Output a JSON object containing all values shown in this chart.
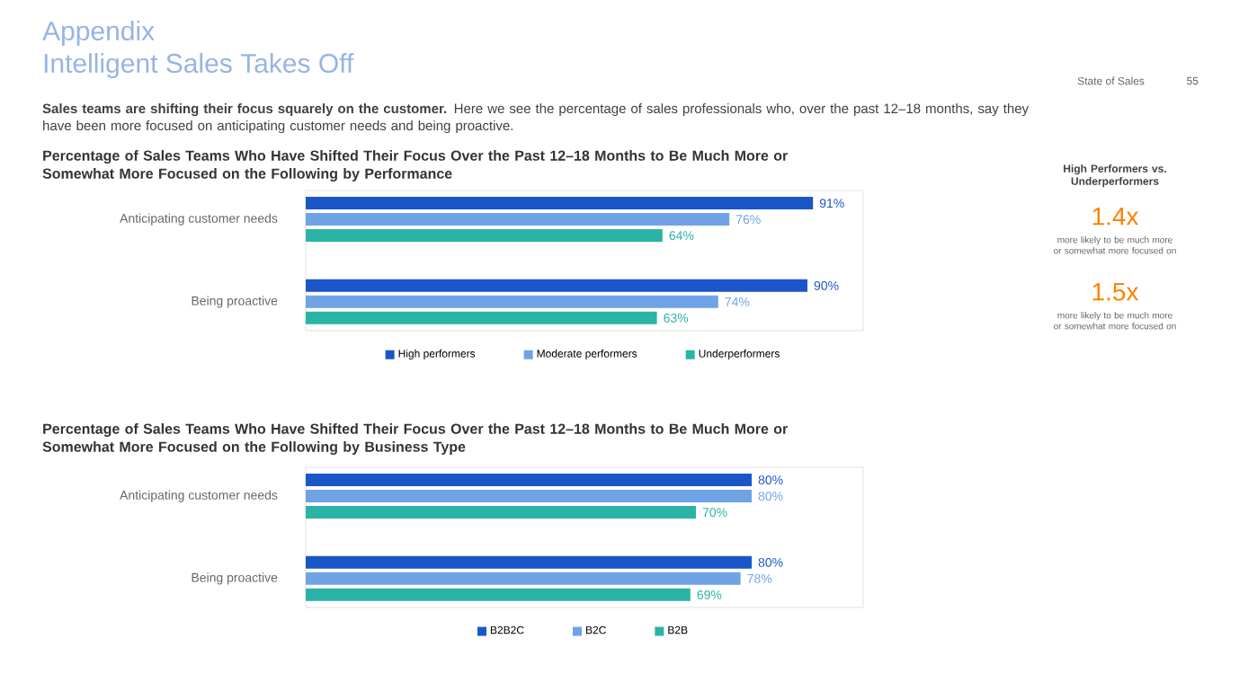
{
  "chart_data": [
    {
      "type": "bar",
      "orientation": "horizontal",
      "title": "Percentage of Sales Teams Who Have Shifted Their Focus Over the Past 12–18 Months to Be Much More or Somewhat More Focused on the Following by Performance",
      "categories": [
        "Anticipating customer needs",
        "Being proactive"
      ],
      "series": [
        {
          "name": "High performers",
          "color": "#1a56c8",
          "values": [
            91,
            90
          ],
          "value_labels": [
            "91%",
            "90%"
          ]
        },
        {
          "name": "Moderate performers",
          "color": "#6fa3e6",
          "values": [
            76,
            74
          ],
          "value_labels": [
            "76%",
            "74%"
          ]
        },
        {
          "name": "Underperformers",
          "color": "#2ab3a6",
          "values": [
            64,
            63
          ],
          "value_labels": [
            "64%",
            "63%"
          ]
        }
      ],
      "xlim": [
        0,
        100
      ],
      "tick_labels": "y",
      "legend": "bottom",
      "annotations": [
        "Appendix",
        "Intelligent Sales Takes Off",
        "State of Sales",
        "55",
        "**Sales teams are shifting their focus squarely on the customer.** Here we see the percentage of sales professionals who, over the past 12–18 months, say they have been more focused on anticipating customer needs and being proactive.",
        "High Performers vs. Underperformers",
        "1.4x",
        "more likely to be much more or somewhat more focused on",
        "1.5x",
        "more likely to be much more or somewhat more focused on"
      ]
    },
    {
      "type": "bar",
      "orientation": "horizontal",
      "title": "Percentage of Sales Teams Who Have Shifted Their Focus Over the Past 12–18 Months to Be Much More or Somewhat More Focused on the Following by Business Type",
      "categories": [
        "Anticipating customer needs",
        "Being proactive"
      ],
      "series": [
        {
          "name": "B2B2C",
          "color": "#1a56c8",
          "values": [
            80,
            80
          ],
          "value_labels": [
            "80%",
            "80%"
          ]
        },
        {
          "name": "B2C",
          "color": "#6fa3e6",
          "values": [
            80,
            78
          ],
          "value_labels": [
            "80%",
            "78%"
          ]
        },
        {
          "name": "B2B",
          "color": "#2ab3a6",
          "values": [
            70,
            69
          ],
          "value_labels": [
            "70%",
            "69%"
          ]
        }
      ],
      "xlim": [
        0,
        100
      ],
      "tick_labels": "y",
      "legend": "bottom"
    }
  ]
}
